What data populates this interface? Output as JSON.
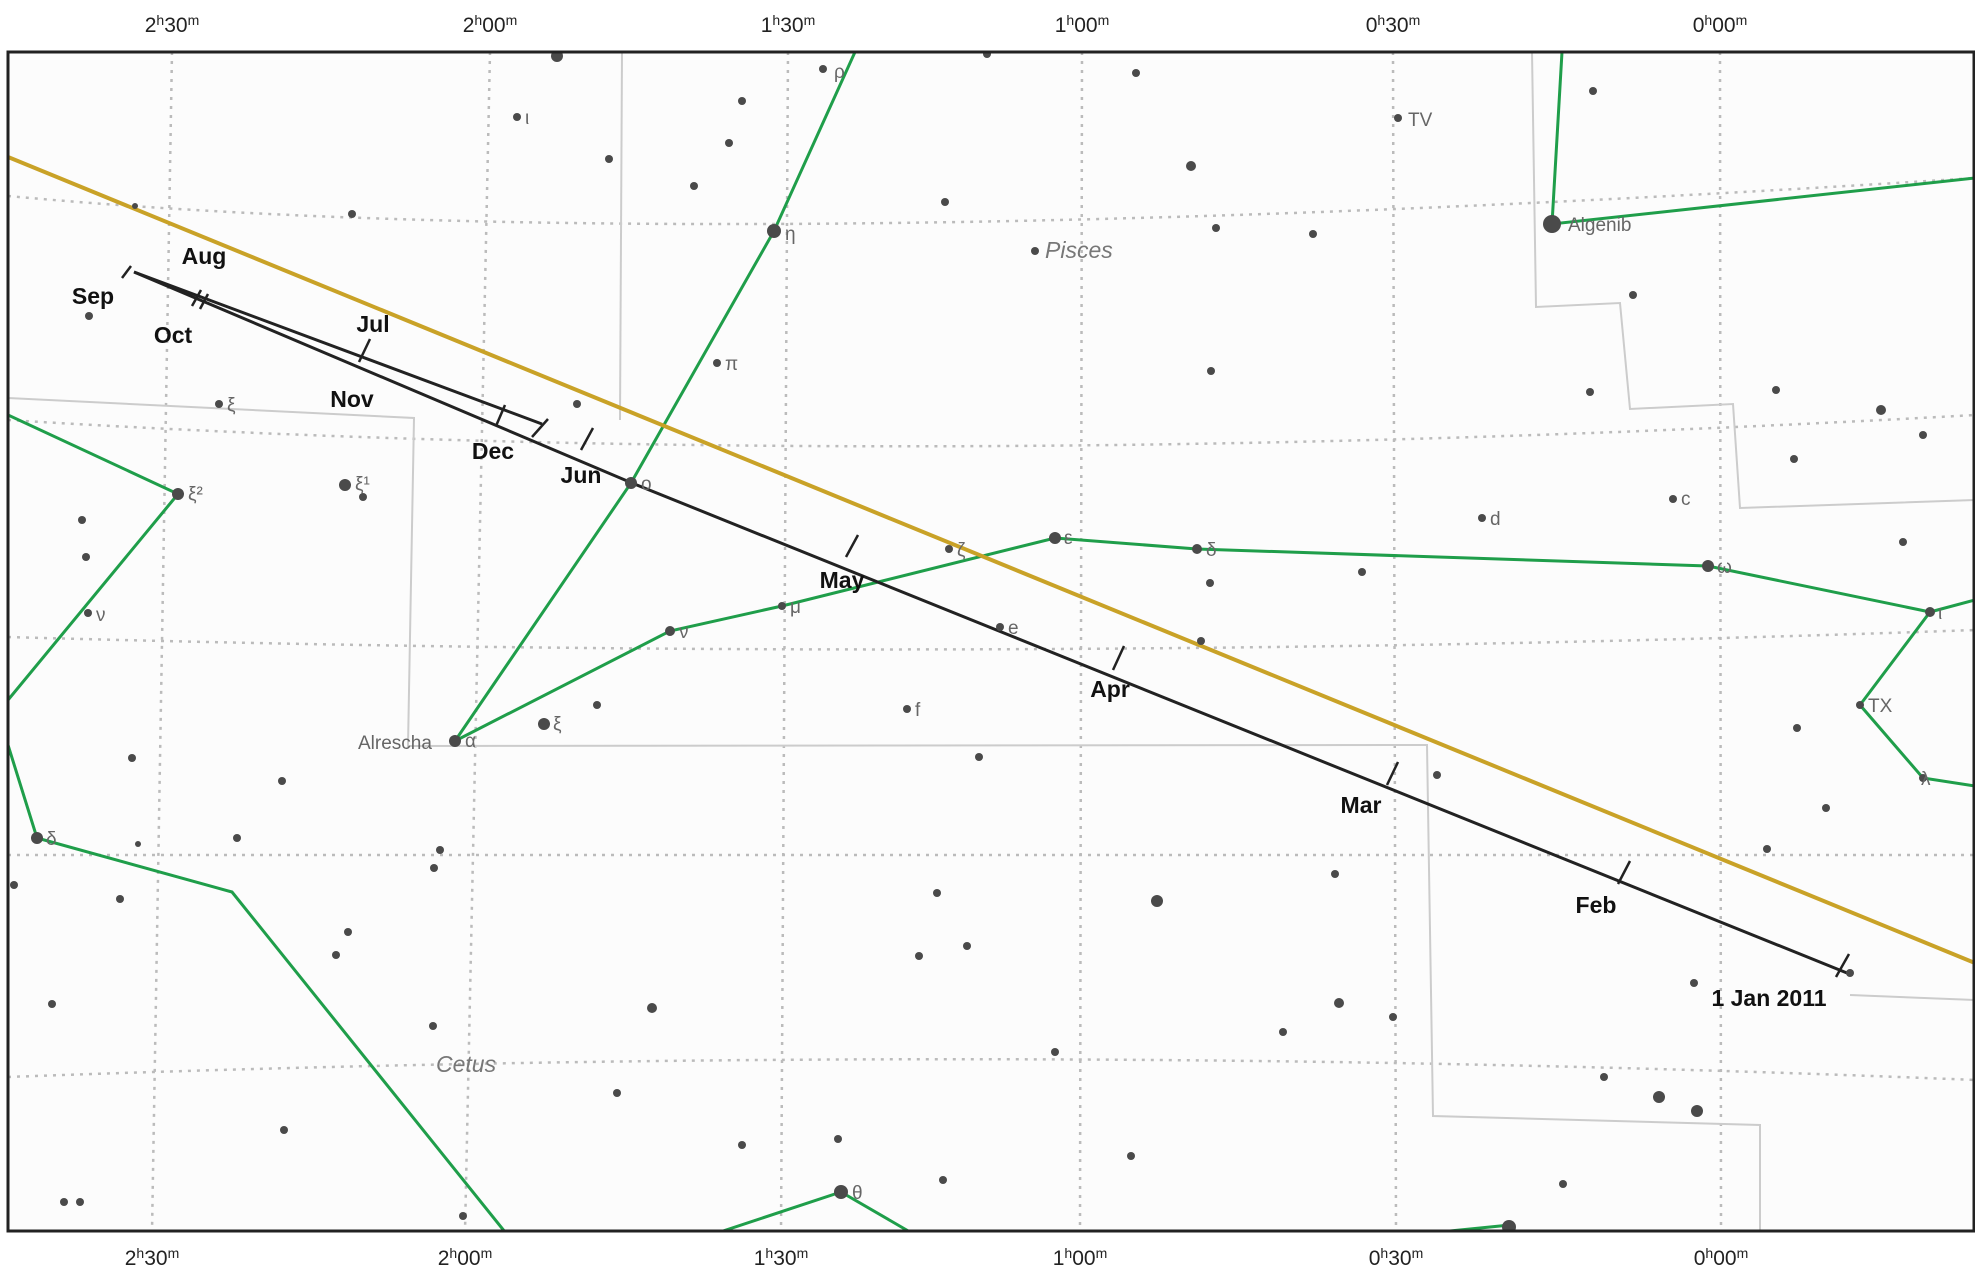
{
  "ra_labels": {
    "top": [
      "2h30m",
      "2h00m",
      "1h30m",
      "1h00m",
      "0h30m",
      "0h00m"
    ],
    "bottom": [
      "2h30m",
      "2h00m",
      "1h30m",
      "1h00m",
      "0h30m",
      "0h00m"
    ]
  },
  "constellations": [
    "Pisces",
    "Cetus"
  ],
  "named_stars": [
    "Algenib",
    "Alrescha"
  ],
  "star_labels": [
    "ρ",
    "ι",
    "TV",
    "η",
    "π",
    "ξ",
    "ξ²",
    "ξ¹",
    "ο",
    "ν",
    "ζ",
    "ε",
    "δ",
    "d",
    "c",
    "ω",
    "ι",
    "μ",
    "ν",
    "e",
    "f",
    "ξ",
    "α",
    "TX",
    "λ",
    "δ",
    "θ"
  ],
  "path_labels": {
    "start": "1 Jan 2011",
    "months": [
      "Feb",
      "Mar",
      "Apr",
      "May",
      "Jun",
      "Jul",
      "Aug",
      "Sep",
      "Oct",
      "Nov",
      "Dec"
    ]
  },
  "colors": {
    "ecliptic": "#c9a227",
    "constellation_lines": "#1f9e4a",
    "path": "#222222",
    "grid": "#bbbbbb",
    "boundaries": "#cccccc",
    "stars": "#4a4a4a",
    "background": "#fcfcfc"
  }
}
